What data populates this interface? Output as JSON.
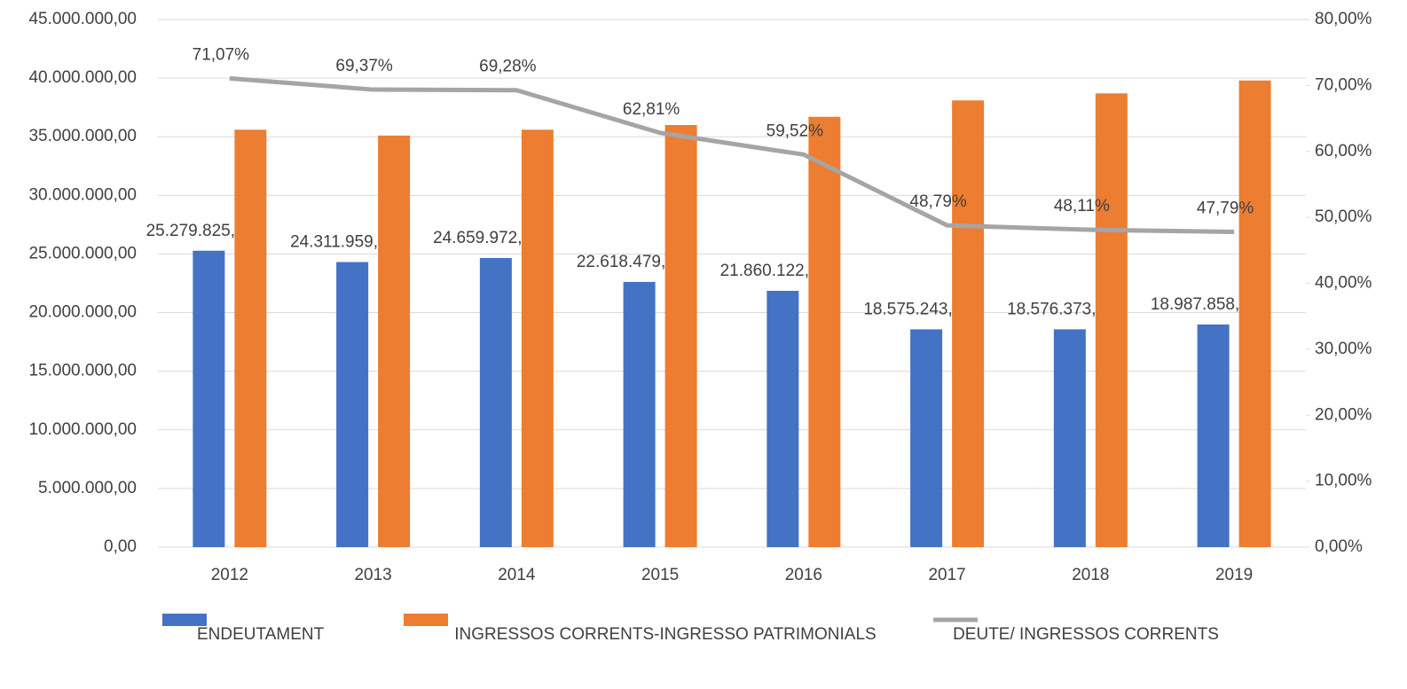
{
  "chart_data": {
    "type": "bar",
    "categories": [
      "2012",
      "2013",
      "2014",
      "2015",
      "2016",
      "2017",
      "2018",
      "2019"
    ],
    "series": [
      {
        "name": "ENDEUTAMENT",
        "color": "#4472c4",
        "values": [
          25279825.01,
          24311959.49,
          24659972.21,
          22618479.67,
          21860122.82,
          18575243.93,
          18576373.94,
          18987858.22
        ],
        "value_labels": [
          "25.279.825,01",
          "24.311.959,49",
          "24.659.972,21",
          "22.618.479,67",
          "21.860.122,82",
          "18.575.243,93",
          "18.576.373,94",
          "18.987.858,22"
        ]
      },
      {
        "name": "INGRESSOS CORRENTS-INGRESSO PATRIMONIALS",
        "color": "#ed7d31",
        "values": [
          35600000,
          35100000,
          35600000,
          36000000,
          36700000,
          38100000,
          38700000,
          39800000
        ]
      },
      {
        "name": "DEUTE/ INGRESSOS CORRENTS",
        "color": "#a5a5a5",
        "type": "line",
        "axis": "y2",
        "values": [
          71.07,
          69.37,
          69.28,
          62.81,
          59.52,
          48.79,
          48.11,
          47.79
        ],
        "value_labels": [
          "71,07%",
          "69,37%",
          "69,28%",
          "62,81%",
          "59,52%",
          "48,79%",
          "48,11%",
          "47,79%"
        ]
      }
    ],
    "ylim": [
      0,
      45000000
    ],
    "yticks": [
      {
        "value": 0,
        "label": "0,00"
      },
      {
        "value": 5000000,
        "label": "5.000.000,00"
      },
      {
        "value": 10000000,
        "label": "10.000.000,00"
      },
      {
        "value": 15000000,
        "label": "15.000.000,00"
      },
      {
        "value": 20000000,
        "label": "20.000.000,00"
      },
      {
        "value": 25000000,
        "label": "25.000.000,00"
      },
      {
        "value": 30000000,
        "label": "30.000.000,00"
      },
      {
        "value": 35000000,
        "label": "35.000.000,00"
      },
      {
        "value": 40000000,
        "label": "40.000.000,00"
      },
      {
        "value": 45000000,
        "label": "45.000.000,00"
      }
    ],
    "y2lim": [
      0,
      80
    ],
    "y2ticks": [
      {
        "value": 0,
        "label": "0,00%"
      },
      {
        "value": 10,
        "label": "10,00%"
      },
      {
        "value": 20,
        "label": "20,00%"
      },
      {
        "value": 30,
        "label": "30,00%"
      },
      {
        "value": 40,
        "label": "40,00%"
      },
      {
        "value": 50,
        "label": "50,00%"
      },
      {
        "value": 60,
        "label": "60,00%"
      },
      {
        "value": 70,
        "label": "70,00%"
      },
      {
        "value": 80,
        "label": "80,00%"
      }
    ],
    "grid": true,
    "legend": "bottom"
  }
}
